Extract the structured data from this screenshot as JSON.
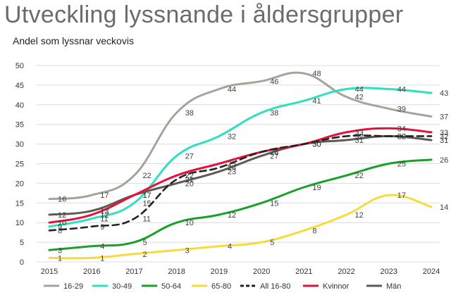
{
  "chart_data": {
    "type": "line",
    "title": "Utveckling lyssnande i åldersgrupper",
    "subtitle": "Andel som lyssnar veckovis",
    "xlabel": "",
    "ylabel": "",
    "ylim": [
      0,
      50
    ],
    "yticks": [
      0,
      5,
      10,
      15,
      20,
      25,
      30,
      35,
      40,
      45,
      50
    ],
    "grid": true,
    "legend_position": "bottom",
    "x": [
      "2015",
      "2016",
      "2017",
      "2018",
      "2019",
      "2020",
      "2021",
      "2022",
      "2023",
      "2024"
    ],
    "series": [
      {
        "name": "16-29",
        "color": "#a5a39a",
        "dash": false,
        "values": [
          16,
          17,
          22,
          38,
          44,
          46,
          48,
          42,
          39,
          37
        ]
      },
      {
        "name": "30-49",
        "color": "#2fe0c0",
        "dash": false,
        "values": [
          9,
          11,
          15,
          27,
          32,
          38,
          41,
          44,
          44,
          43
        ]
      },
      {
        "name": "50-64",
        "color": "#1a9f2a",
        "dash": false,
        "values": [
          3,
          4,
          5,
          10,
          12,
          15,
          19,
          22,
          25,
          26
        ]
      },
      {
        "name": "65-80",
        "color": "#f5dc3a",
        "dash": false,
        "values": [
          1,
          1,
          2,
          3,
          4,
          5,
          8,
          12,
          17,
          14
        ]
      },
      {
        "name": "All 16-80",
        "color": "#222222",
        "dash": true,
        "values": [
          8,
          9,
          11,
          21,
          24,
          28,
          30,
          32,
          32,
          32
        ]
      },
      {
        "name": "Kvinnor",
        "color": "#e3123b",
        "dash": false,
        "values": [
          10,
          12,
          17,
          22,
          25,
          28,
          30,
          33,
          34,
          33
        ]
      },
      {
        "name": "Män",
        "color": "#5e5a52",
        "dash": false,
        "values": [
          12,
          13,
          17,
          20,
          23,
          27,
          30,
          31,
          32,
          31
        ]
      }
    ]
  }
}
